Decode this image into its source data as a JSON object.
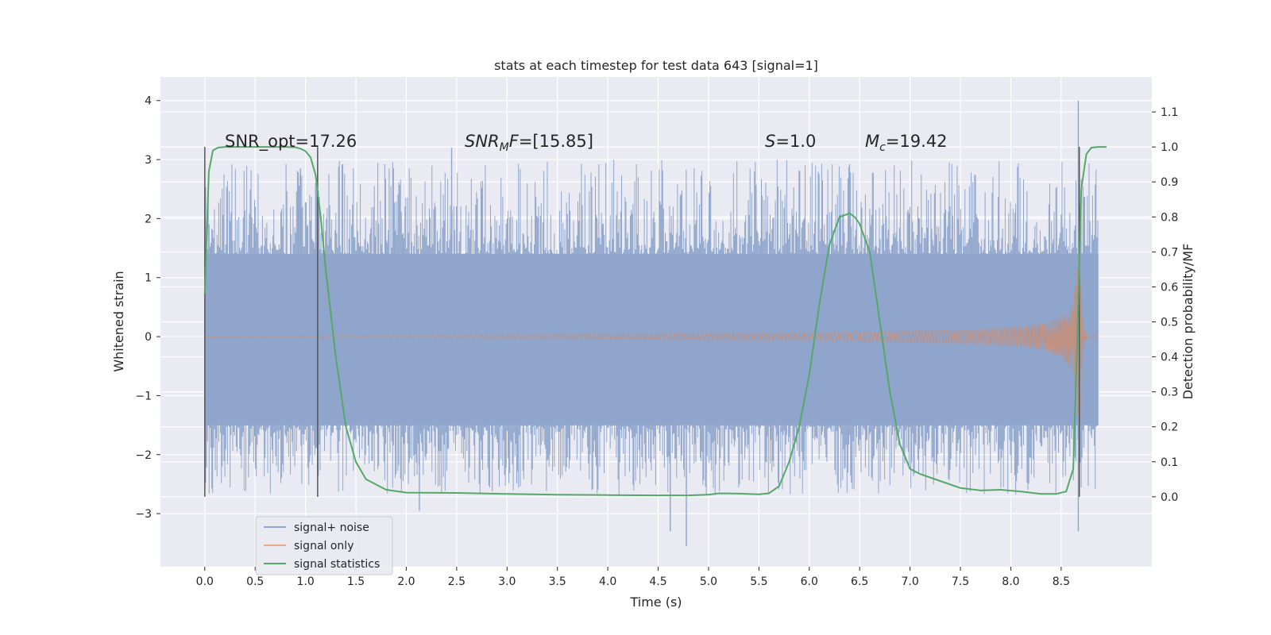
{
  "chart_data": {
    "type": "line",
    "title": "stats at each timestep for test data 643 [signal=1]",
    "xlabel": "Time (s)",
    "ylabel_left": "Whitened strain",
    "ylabel_right": "Detection probability/MF",
    "xlim": [
      -0.44,
      9.4
    ],
    "ylim_left": [
      -3.9,
      4.4
    ],
    "ylim_right": [
      -0.2,
      1.2
    ],
    "x_ticks": [
      0.0,
      0.5,
      1.0,
      1.5,
      2.0,
      2.5,
      3.0,
      3.5,
      4.0,
      4.5,
      5.0,
      5.5,
      6.0,
      6.5,
      7.0,
      7.5,
      8.0,
      8.5
    ],
    "x_tick_labels": [
      "0.0",
      "0.5",
      "1.0",
      "1.5",
      "2.0",
      "2.5",
      "3.0",
      "3.5",
      "4.0",
      "4.5",
      "5.0",
      "5.5",
      "6.0",
      "6.5",
      "7.0",
      "7.5",
      "8.0",
      "8.5"
    ],
    "y_ticks_left": [
      4,
      3,
      2,
      1,
      0,
      -1,
      -2,
      -3
    ],
    "y_tick_labels_left": [
      "4",
      "3",
      "2",
      "1",
      "0",
      "−1",
      "−2",
      "−3"
    ],
    "y_ticks_right": [
      1.1,
      1.0,
      0.9,
      0.8,
      0.7,
      0.6,
      0.5,
      0.4,
      0.3,
      0.2,
      0.1,
      0.0
    ],
    "y_tick_labels_right": [
      "1.1",
      "1.0",
      "0.9",
      "0.8",
      "0.7",
      "0.6",
      "0.5",
      "0.4",
      "0.3",
      "0.2",
      "0.1",
      "0.0"
    ],
    "grid": true,
    "legend_position": "lower-left",
    "annotations": {
      "snr_opt": "SNR_opt=17.26",
      "snr_mf_label": "SNR",
      "snr_mf_sub": "M",
      "snr_mf_rest": "F",
      "snr_mf_value": "=[15.85]",
      "s_label": "S",
      "s_value": "=1.0",
      "mc_label": "M",
      "mc_sub": "c",
      "mc_value": "=19.42"
    },
    "vertical_markers": [
      0.0,
      1.12,
      8.68
    ],
    "series": [
      {
        "name": "signal+ noise",
        "color": "#8fa5cc",
        "t_start": 0.0,
        "t_end": 8.87,
        "envelope_upper": 1.4,
        "envelope_lower": -1.5,
        "spikes": [
          [
            2.45,
            3.2
          ],
          [
            4.78,
            -3.55
          ],
          [
            4.62,
            -3.3
          ],
          [
            8.67,
            4.0
          ],
          [
            8.67,
            -3.3
          ],
          [
            2.13,
            -2.95
          ],
          [
            0.95,
            2.85
          ],
          [
            1.1,
            2.6
          ]
        ]
      },
      {
        "name": "signal only",
        "color": "#dd8452",
        "t_start": 0.0,
        "t_end": 8.87,
        "amp_start": 0.01,
        "amp_peak": 2.6,
        "t_merger": 8.68
      },
      {
        "name": "signal statistics",
        "color": "#55a868",
        "t": [
          0.0,
          0.04,
          0.08,
          0.13,
          0.2,
          0.35,
          0.6,
          0.8,
          0.9,
          0.95,
          1.0,
          1.05,
          1.1,
          1.15,
          1.2,
          1.3,
          1.4,
          1.5,
          1.6,
          1.8,
          2.0,
          2.5,
          3.0,
          3.5,
          4.0,
          4.5,
          4.8,
          5.0,
          5.1,
          5.3,
          5.5,
          5.6,
          5.7,
          5.8,
          5.9,
          6.0,
          6.1,
          6.2,
          6.3,
          6.4,
          6.45,
          6.5,
          6.6,
          6.7,
          6.8,
          6.9,
          7.0,
          7.1,
          7.3,
          7.5,
          7.7,
          7.9,
          8.1,
          8.3,
          8.45,
          8.55,
          8.62,
          8.66,
          8.7,
          8.75,
          8.8,
          8.87,
          8.95
        ],
        "values": [
          0.58,
          0.93,
          0.99,
          0.998,
          1.0,
          1.0,
          1.0,
          1.0,
          0.999,
          0.995,
          0.988,
          0.97,
          0.92,
          0.8,
          0.65,
          0.4,
          0.2,
          0.1,
          0.05,
          0.02,
          0.012,
          0.011,
          0.008,
          0.006,
          0.005,
          0.004,
          0.004,
          0.006,
          0.01,
          0.009,
          0.007,
          0.01,
          0.03,
          0.1,
          0.2,
          0.35,
          0.55,
          0.72,
          0.8,
          0.81,
          0.8,
          0.78,
          0.7,
          0.5,
          0.3,
          0.15,
          0.08,
          0.065,
          0.045,
          0.025,
          0.018,
          0.02,
          0.015,
          0.008,
          0.008,
          0.015,
          0.08,
          0.45,
          0.88,
          0.98,
          0.998,
          1.0,
          1.0
        ]
      }
    ]
  },
  "legend": {
    "items": [
      "signal+ noise",
      "signal only",
      "signal statistics"
    ]
  }
}
